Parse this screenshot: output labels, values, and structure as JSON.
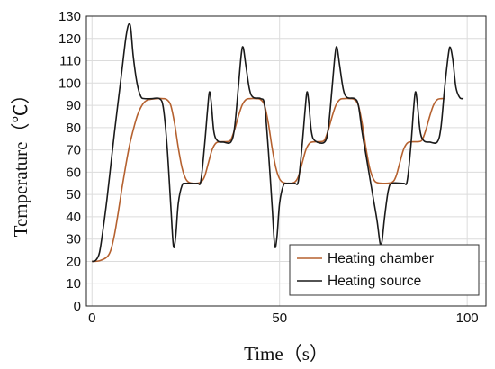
{
  "chart_data": {
    "type": "line",
    "xlabel": "Time（s）",
    "ylabel": "Temperature（℃）",
    "xlim": [
      -1.5,
      105
    ],
    "ylim": [
      0,
      130
    ],
    "xticks": [
      0,
      50,
      100
    ],
    "yticks": [
      0,
      10,
      20,
      30,
      40,
      50,
      60,
      70,
      80,
      90,
      100,
      110,
      120,
      130
    ],
    "grid": true,
    "legend_position": "bottom-right",
    "series": [
      {
        "name": "Heating chamber",
        "color": "#b5612f",
        "points": [
          [
            0,
            20
          ],
          [
            2,
            20.3
          ],
          [
            4,
            22
          ],
          [
            5,
            25
          ],
          [
            6,
            32
          ],
          [
            7,
            42
          ],
          [
            8,
            53
          ],
          [
            9,
            63
          ],
          [
            10,
            72
          ],
          [
            11,
            79
          ],
          [
            12,
            85
          ],
          [
            13,
            89
          ],
          [
            14,
            91.5
          ],
          [
            15,
            92.5
          ],
          [
            17,
            93
          ],
          [
            19,
            93
          ],
          [
            20,
            92.5
          ],
          [
            21,
            90
          ],
          [
            22,
            82
          ],
          [
            23,
            71
          ],
          [
            24,
            62
          ],
          [
            25,
            57
          ],
          [
            26,
            55.3
          ],
          [
            27.5,
            55
          ],
          [
            29,
            55.5
          ],
          [
            30,
            58
          ],
          [
            31,
            64
          ],
          [
            32,
            70
          ],
          [
            33,
            73
          ],
          [
            34,
            73.6
          ],
          [
            36,
            73.7
          ],
          [
            37,
            74.5
          ],
          [
            38,
            79
          ],
          [
            39,
            85
          ],
          [
            40,
            90
          ],
          [
            41,
            92.5
          ],
          [
            42,
            93
          ],
          [
            44,
            93
          ],
          [
            45,
            92.5
          ],
          [
            46,
            90
          ],
          [
            47,
            82
          ],
          [
            48,
            71
          ],
          [
            49,
            62
          ],
          [
            50,
            57
          ],
          [
            51,
            55.3
          ],
          [
            52.5,
            55
          ],
          [
            54,
            55.5
          ],
          [
            55,
            58
          ],
          [
            56,
            64
          ],
          [
            57,
            70
          ],
          [
            58,
            73
          ],
          [
            59,
            73.6
          ],
          [
            61,
            73.7
          ],
          [
            62,
            74.5
          ],
          [
            63,
            79
          ],
          [
            64,
            85
          ],
          [
            65,
            90
          ],
          [
            66,
            92.5
          ],
          [
            67,
            93
          ],
          [
            69,
            93
          ],
          [
            70,
            92.5
          ],
          [
            71,
            90
          ],
          [
            72,
            82
          ],
          [
            73,
            71
          ],
          [
            74,
            62
          ],
          [
            75,
            57
          ],
          [
            76,
            55.3
          ],
          [
            78,
            55
          ],
          [
            80,
            55.5
          ],
          [
            81,
            58
          ],
          [
            82,
            64
          ],
          [
            83,
            70
          ],
          [
            84,
            73
          ],
          [
            85,
            73.6
          ],
          [
            87,
            73.7
          ],
          [
            88,
            74.5
          ],
          [
            89,
            79
          ],
          [
            90,
            85
          ],
          [
            91,
            90
          ],
          [
            92,
            92.5
          ],
          [
            93,
            93
          ],
          [
            94,
            93
          ]
        ]
      },
      {
        "name": "Heating source",
        "color": "#1a1a1a",
        "points": [
          [
            0,
            20
          ],
          [
            1,
            20.5
          ],
          [
            2,
            24
          ],
          [
            3,
            35
          ],
          [
            4,
            48
          ],
          [
            5,
            63
          ],
          [
            6,
            78
          ],
          [
            7,
            92
          ],
          [
            8,
            106
          ],
          [
            9,
            120
          ],
          [
            9.7,
            126
          ],
          [
            10.3,
            125
          ],
          [
            11,
            112
          ],
          [
            12,
            100
          ],
          [
            13,
            94
          ],
          [
            14,
            93
          ],
          [
            16,
            93
          ],
          [
            18,
            93
          ],
          [
            19,
            89
          ],
          [
            20,
            72
          ],
          [
            21,
            45
          ],
          [
            21.7,
            27
          ],
          [
            22.3,
            31
          ],
          [
            23,
            46
          ],
          [
            24,
            54
          ],
          [
            25,
            55
          ],
          [
            28,
            55
          ],
          [
            29,
            56
          ],
          [
            30,
            72
          ],
          [
            30.8,
            88
          ],
          [
            31.3,
            96
          ],
          [
            31.8,
            91
          ],
          [
            32.5,
            78
          ],
          [
            33.5,
            74
          ],
          [
            35,
            73.5
          ],
          [
            37,
            73.5
          ],
          [
            38,
            80
          ],
          [
            39,
            98
          ],
          [
            39.8,
            113
          ],
          [
            40.3,
            116
          ],
          [
            41,
            108
          ],
          [
            42,
            97
          ],
          [
            43,
            93.5
          ],
          [
            45,
            93
          ],
          [
            46,
            90
          ],
          [
            47,
            70
          ],
          [
            48,
            45
          ],
          [
            48.7,
            27
          ],
          [
            49.3,
            31
          ],
          [
            50,
            46
          ],
          [
            51,
            54
          ],
          [
            52,
            55
          ],
          [
            54,
            55
          ],
          [
            55,
            56
          ],
          [
            56,
            72
          ],
          [
            56.8,
            88
          ],
          [
            57.3,
            96
          ],
          [
            57.8,
            91
          ],
          [
            58.5,
            78
          ],
          [
            59.5,
            74
          ],
          [
            62,
            73.5
          ],
          [
            63,
            80
          ],
          [
            64,
            98
          ],
          [
            64.8,
            113
          ],
          [
            65.3,
            116
          ],
          [
            66,
            108
          ],
          [
            67,
            97
          ],
          [
            68,
            93.5
          ],
          [
            70,
            93
          ],
          [
            71,
            90
          ],
          [
            72,
            78
          ],
          [
            73,
            68
          ],
          [
            74,
            58
          ],
          [
            75,
            48
          ],
          [
            76,
            38
          ],
          [
            76.8,
            28
          ],
          [
            77.3,
            29
          ],
          [
            78,
            40
          ],
          [
            79,
            52
          ],
          [
            80,
            55
          ],
          [
            83,
            55
          ],
          [
            84,
            56
          ],
          [
            85,
            72
          ],
          [
            85.7,
            88
          ],
          [
            86.2,
            96
          ],
          [
            86.7,
            91
          ],
          [
            87.5,
            78
          ],
          [
            88.5,
            74
          ],
          [
            90,
            73.5
          ],
          [
            92,
            73.5
          ],
          [
            93,
            80
          ],
          [
            94,
            98
          ],
          [
            95,
            113
          ],
          [
            95.5,
            116
          ],
          [
            96.2,
            110
          ],
          [
            97,
            98
          ],
          [
            98,
            93.5
          ],
          [
            99,
            93
          ]
        ]
      }
    ]
  }
}
